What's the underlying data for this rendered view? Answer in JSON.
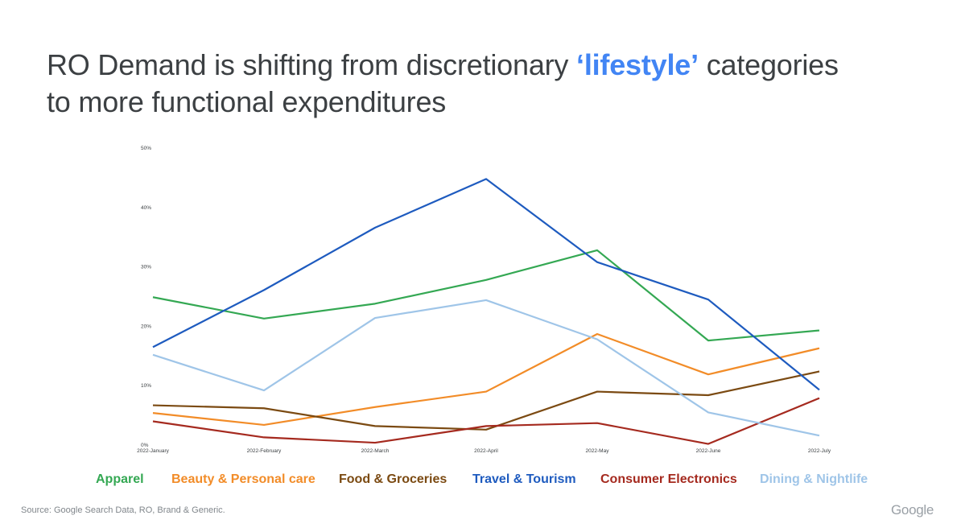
{
  "title": {
    "part1": "RO Demand is shifting from discretionary ",
    "highlight": "‘lifestyle’",
    "part2": " categories",
    "line2": "to more functional expenditures"
  },
  "source": "Source: Google Search Data, RO, Brand & Generic.",
  "logo_text": "Google",
  "colors": {
    "apparel": "#34a853",
    "beauty": "#f28c28",
    "food": "#7b4a12",
    "travel": "#1e5bbf",
    "electronics": "#a52a1f",
    "dining": "#9fc5e8"
  },
  "chart_data": {
    "type": "line",
    "title": "",
    "xlabel": "",
    "ylabel": "",
    "ylim": [
      0,
      50
    ],
    "y_unit": "%",
    "yticks": [
      "0%",
      "10%",
      "20%",
      "30%",
      "40%",
      "50%"
    ],
    "categories": [
      "2022-January",
      "2022-February",
      "2022-March",
      "2022-April",
      "2022-May",
      "2022-June",
      "2022-July"
    ],
    "grid": false,
    "legend_position": "bottom",
    "series": [
      {
        "name": "Apparel",
        "color": "#34a853",
        "values": [
          24.9,
          21.3,
          23.8,
          27.8,
          32.8,
          17.6,
          19.3
        ]
      },
      {
        "name": "Beauty & Personal care",
        "color": "#f28c28",
        "values": [
          5.4,
          3.4,
          6.4,
          9.0,
          18.7,
          11.9,
          16.3
        ]
      },
      {
        "name": "Food & Groceries",
        "color": "#7b4a12",
        "values": [
          6.7,
          6.2,
          3.2,
          2.6,
          9.0,
          8.4,
          12.4
        ]
      },
      {
        "name": "Travel & Tourism",
        "color": "#1e5bbf",
        "values": [
          16.5,
          26.1,
          36.6,
          44.8,
          30.8,
          24.5,
          9.3
        ]
      },
      {
        "name": "Consumer Electronics",
        "color": "#a52a1f",
        "values": [
          4.0,
          1.3,
          0.4,
          3.2,
          3.7,
          0.2,
          7.9
        ]
      },
      {
        "name": "Dining & Nightlife",
        "color": "#9fc5e8",
        "values": [
          15.2,
          9.2,
          21.4,
          24.4,
          17.8,
          5.5,
          1.6
        ]
      }
    ]
  }
}
